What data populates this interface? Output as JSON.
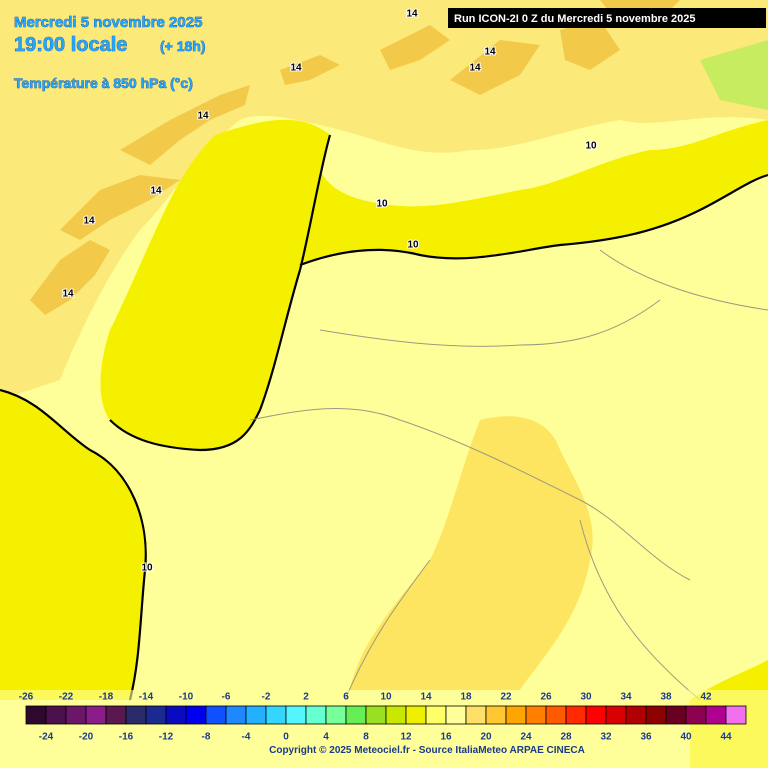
{
  "header": {
    "date": "Mercredi 5 novembre 2025",
    "time": "19:00 locale",
    "lead": "(+ 18h)",
    "variable": "Température à 850 hPa (°c)"
  },
  "run": "Run ICON-2I 0 Z du Mercredi 5 novembre 2025",
  "contour_labels": [
    14,
    14,
    14,
    14,
    14,
    14,
    14,
    14,
    10,
    10,
    10,
    10
  ],
  "colorbar": {
    "ticks": [
      -26,
      -24,
      -22,
      -20,
      -18,
      -16,
      -14,
      -12,
      -10,
      -8,
      -6,
      -4,
      -2,
      0,
      2,
      4,
      6,
      8,
      10,
      12,
      14,
      16,
      18,
      20,
      22,
      24,
      26,
      28,
      30,
      32,
      34,
      36,
      38,
      40,
      42,
      44
    ],
    "colors": [
      "#2d0a2d",
      "#4b114b",
      "#6a176a",
      "#8a1d8a",
      "#5a1850",
      "#2b2a6a",
      "#1a2a90",
      "#0a0ac0",
      "#0000ee",
      "#1050ff",
      "#1e88ff",
      "#22b0ff",
      "#33d6ff",
      "#55f5ff",
      "#66ffd0",
      "#77ff99",
      "#66ee55",
      "#99e022",
      "#c8e800",
      "#eef000",
      "#ffff66",
      "#ffff99",
      "#ffe066",
      "#ffc832",
      "#ffa500",
      "#ff8000",
      "#ff5a00",
      "#ff2a00",
      "#ff0000",
      "#d80000",
      "#b00000",
      "#8c0000",
      "#6a0020",
      "#8c0050",
      "#b00090",
      "#f070f0"
    ]
  },
  "copyright": "Copyright © 2025 Meteociel.fr - Source ItaliaMeteo ARPAE CINECA"
}
